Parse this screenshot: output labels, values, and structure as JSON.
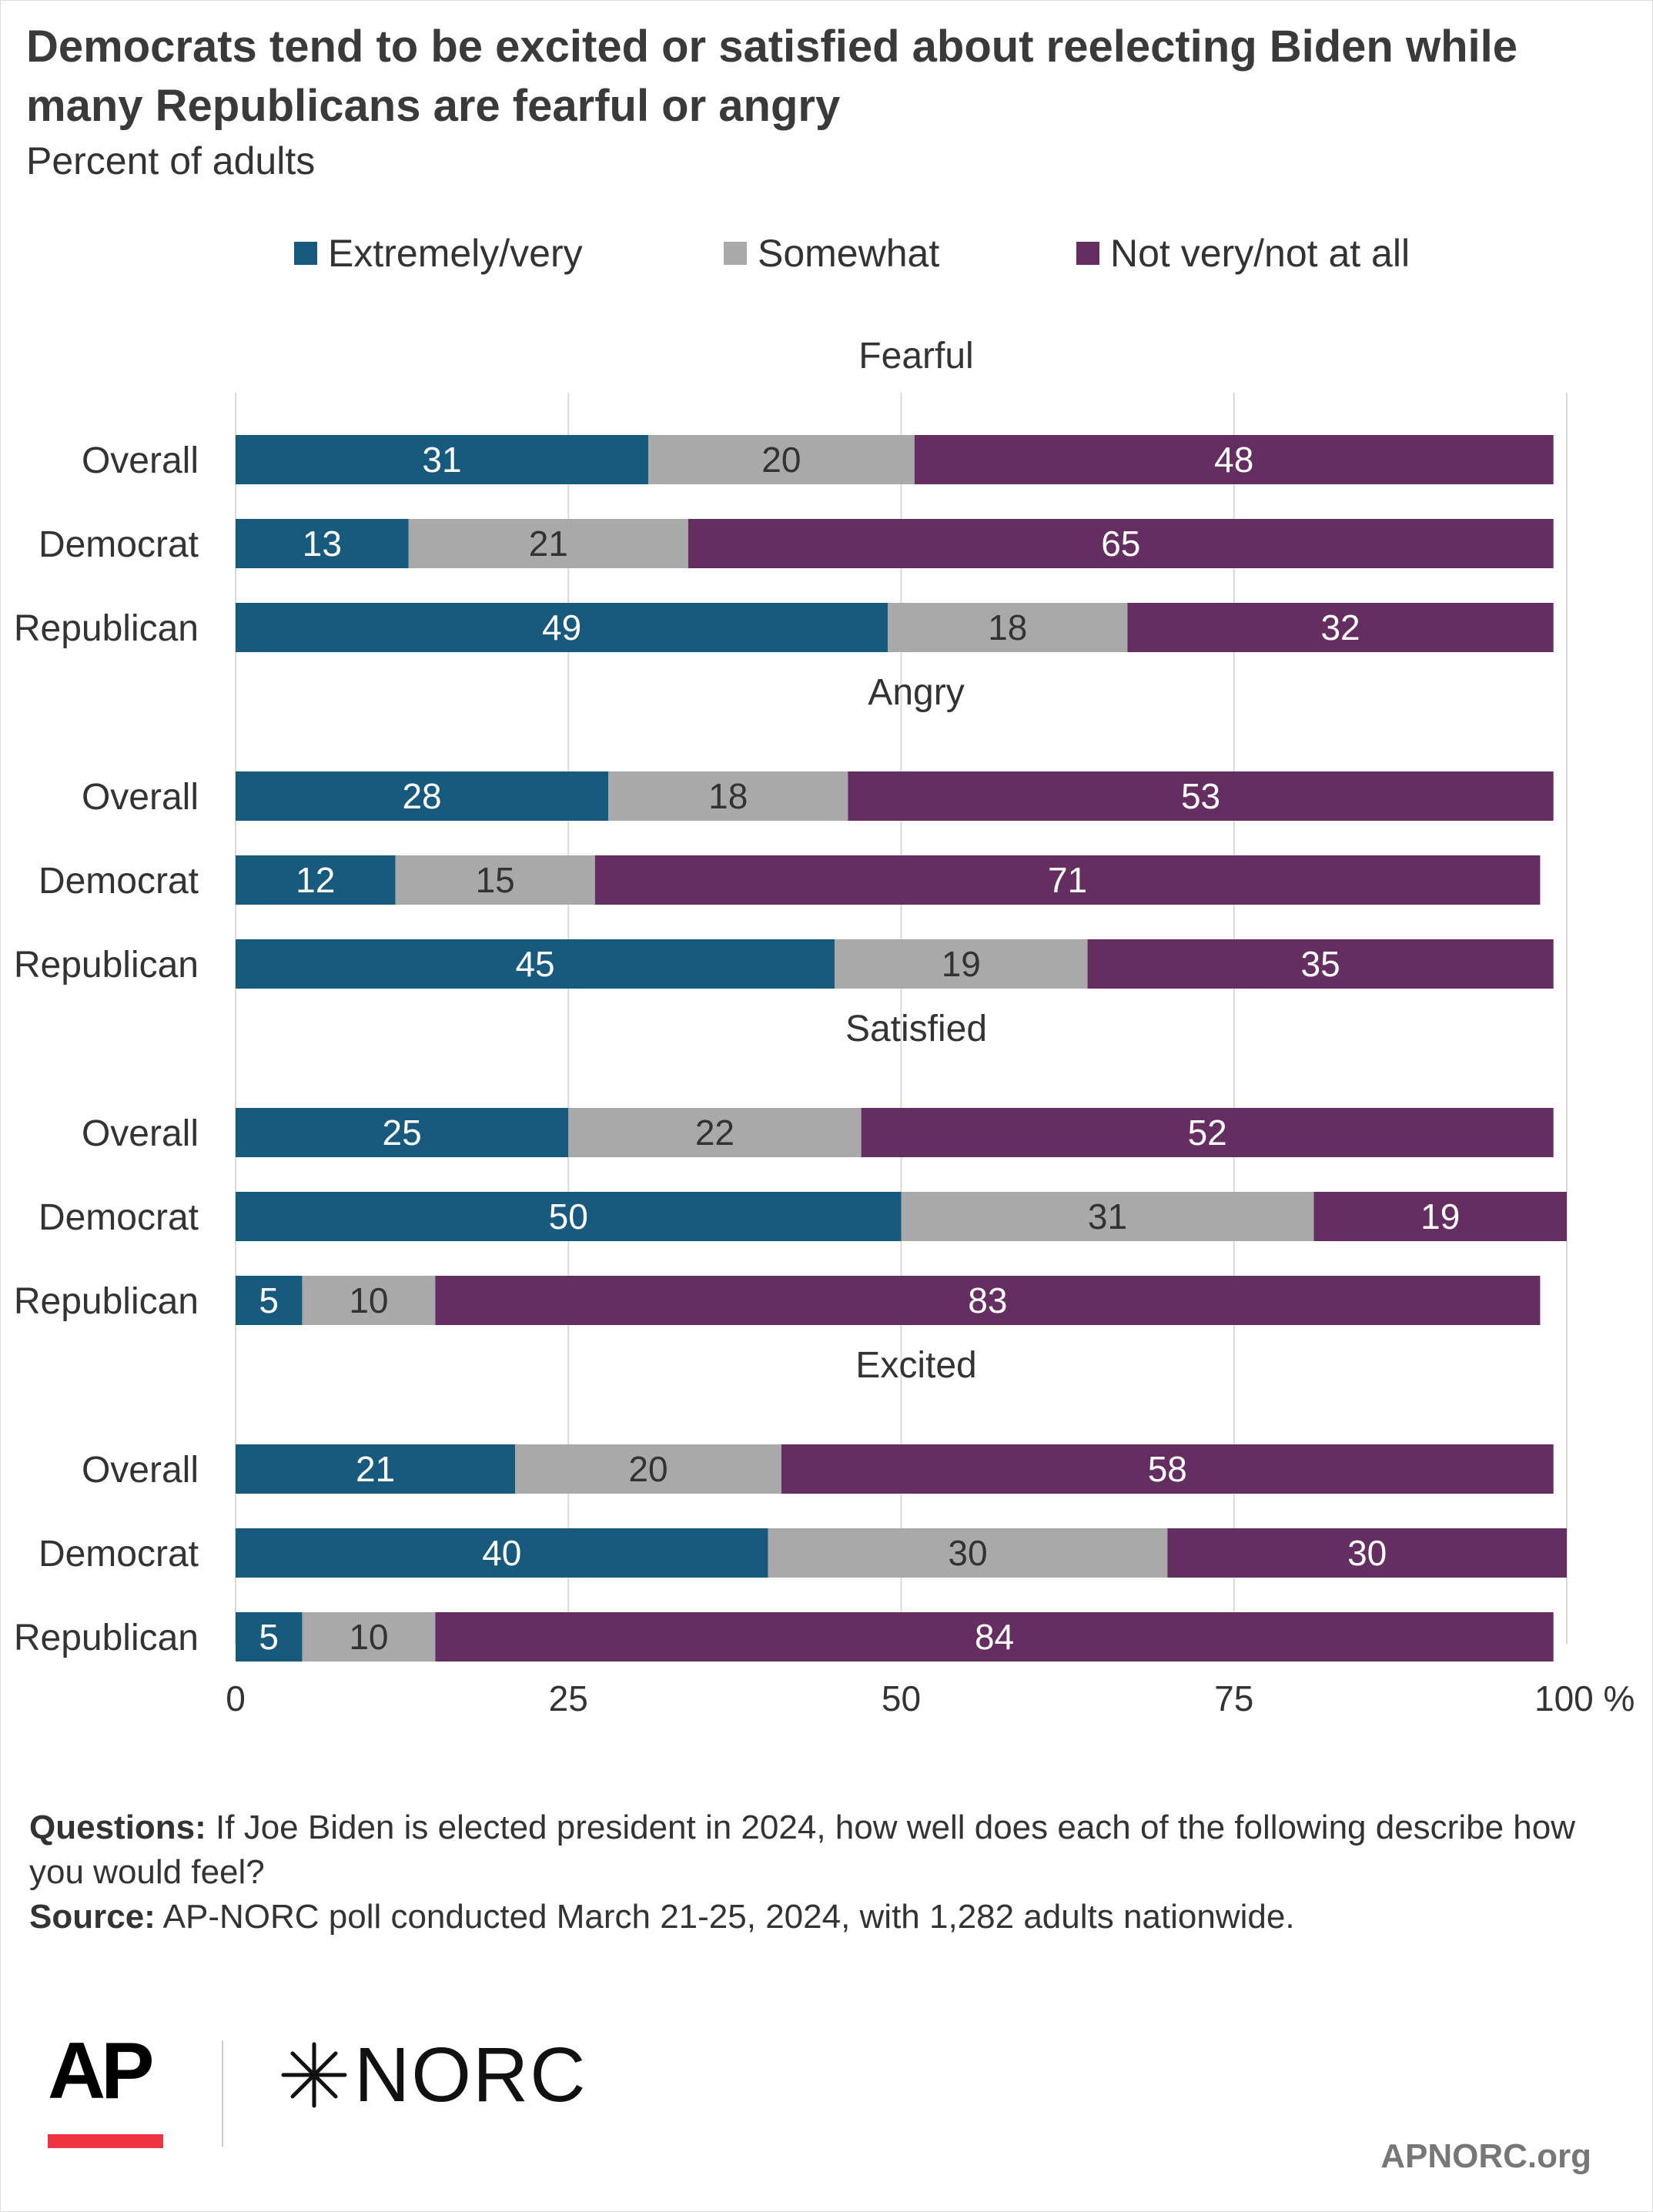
{
  "title": "Democrats tend to be excited or satisfied about reelecting Biden while many Republicans are fearful or angry",
  "subtitle": "Percent of adults",
  "chart_data": {
    "type": "bar",
    "orientation": "horizontal",
    "stacked": true,
    "legend_position": "top",
    "grid": true,
    "xlim": [
      0,
      100
    ],
    "x_ticks": [
      "0",
      "25",
      "50",
      "75",
      "100 %"
    ],
    "categories": [
      "Overall",
      "Democrat",
      "Republican"
    ],
    "series": [
      {
        "name": "Extremely/very",
        "color": "#185a7d"
      },
      {
        "name": "Somewhat",
        "color": "#a9a9a9"
      },
      {
        "name": "Not very/not at all",
        "color": "#652e60"
      }
    ],
    "groups": [
      {
        "title": "Fearful",
        "rows": [
          {
            "label": "Overall",
            "values": [
              31,
              20,
              48
            ]
          },
          {
            "label": "Democrat",
            "values": [
              13,
              21,
              65
            ]
          },
          {
            "label": "Republican",
            "values": [
              49,
              18,
              32
            ]
          }
        ]
      },
      {
        "title": "Angry",
        "rows": [
          {
            "label": "Overall",
            "values": [
              28,
              18,
              53
            ]
          },
          {
            "label": "Democrat",
            "values": [
              12,
              15,
              71
            ]
          },
          {
            "label": "Republican",
            "values": [
              45,
              19,
              35
            ]
          }
        ]
      },
      {
        "title": "Satisfied",
        "rows": [
          {
            "label": "Overall",
            "values": [
              25,
              22,
              52
            ]
          },
          {
            "label": "Democrat",
            "values": [
              50,
              31,
              19
            ]
          },
          {
            "label": "Republican",
            "values": [
              5,
              10,
              83
            ]
          }
        ]
      },
      {
        "title": "Excited",
        "rows": [
          {
            "label": "Overall",
            "values": [
              21,
              20,
              58
            ]
          },
          {
            "label": "Democrat",
            "values": [
              40,
              30,
              30
            ]
          },
          {
            "label": "Republican",
            "values": [
              5,
              10,
              84
            ]
          }
        ]
      }
    ]
  },
  "notes": {
    "questions_label": "Questions:",
    "questions_text": " If Joe Biden is elected president in 2024, how well does each of the following describe how you would feel?",
    "source_label": "Source:",
    "source_text": " AP-NORC poll conducted March 21-25, 2024, with 1,282 adults nationwide."
  },
  "logos": {
    "ap": "AP",
    "norc": "NORC",
    "norc_mark": "✳"
  },
  "site": "APNORC.org"
}
